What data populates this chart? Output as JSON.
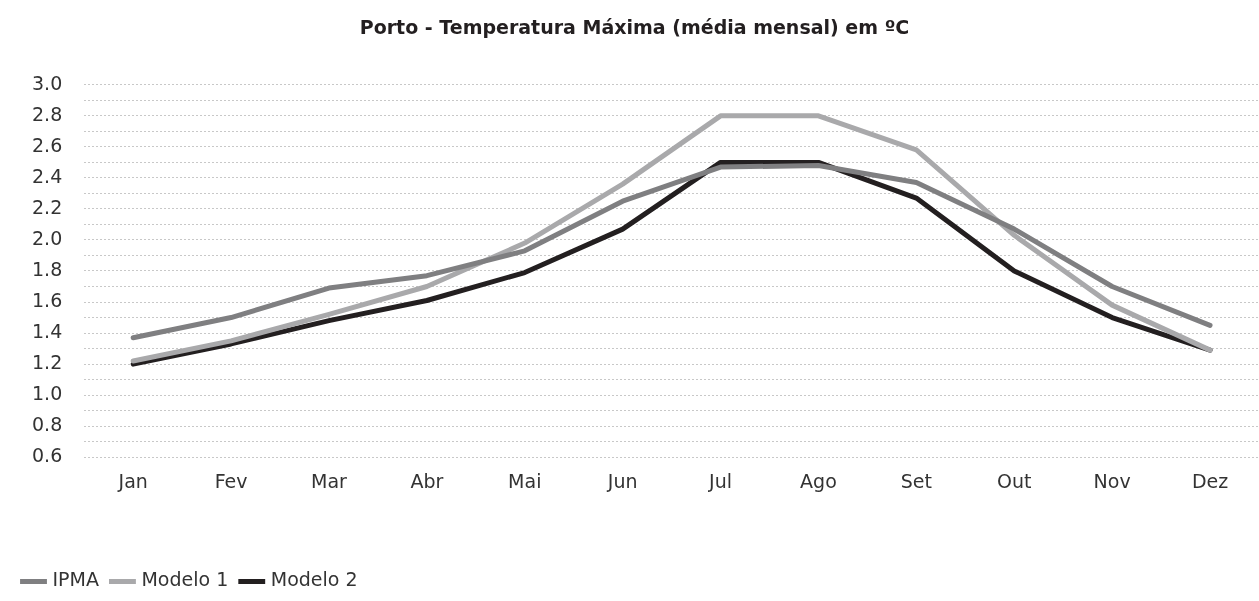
{
  "chart_data": {
    "type": "line",
    "title": "Porto - Temperatura Máxima (média mensal) em ºC",
    "categories": [
      "Jan",
      "Fev",
      "Mar",
      "Abr",
      "Mai",
      "Jun",
      "Jul",
      "Ago",
      "Set",
      "Out",
      "Nov",
      "Dez"
    ],
    "series": [
      {
        "name": "IPMA",
        "color": "#7f7f81",
        "values": [
          1.37,
          1.5,
          1.69,
          1.77,
          1.93,
          2.25,
          2.47,
          2.48,
          2.37,
          2.07,
          1.7,
          1.45
        ]
      },
      {
        "name": "Modelo 1",
        "color": "#a9a9ab",
        "values": [
          1.22,
          1.35,
          1.52,
          1.7,
          1.98,
          2.36,
          2.8,
          2.8,
          2.58,
          2.03,
          1.58,
          1.29
        ]
      },
      {
        "name": "Modelo 2",
        "color": "#231f20",
        "values": [
          1.2,
          1.33,
          1.48,
          1.61,
          1.79,
          2.07,
          2.5,
          2.5,
          2.27,
          1.8,
          1.5,
          1.29
        ]
      }
    ],
    "ylim": [
      0.6,
      3.0
    ],
    "yticks": [
      0.6,
      {
        "value": 0.7,
        "label": null
      },
      0.8,
      {
        "value": 0.9,
        "label": null
      },
      {
        "value": 1,
        "label": "1.0"
      },
      {
        "value": 1.1,
        "label": null
      },
      1.2,
      {
        "value": 1.3,
        "label": null
      },
      1.4,
      {
        "value": 1.5,
        "label": null
      },
      1.6,
      {
        "value": 1.7,
        "label": null
      },
      1.8,
      {
        "value": 1.9,
        "label": null
      },
      {
        "value": 2,
        "label": "2.0"
      },
      {
        "value": 2.1,
        "label": null
      },
      2.2,
      {
        "value": 2.3,
        "label": null
      },
      2.4,
      {
        "value": 2.5,
        "label": null
      },
      2.6,
      {
        "value": 2.7,
        "label": null
      },
      2.8,
      {
        "value": 2.9,
        "label": null
      },
      {
        "value": 3,
        "label": "3.0"
      }
    ],
    "grid": "y",
    "legend": "bottom left",
    "marker": "none",
    "line_style": "solid"
  }
}
